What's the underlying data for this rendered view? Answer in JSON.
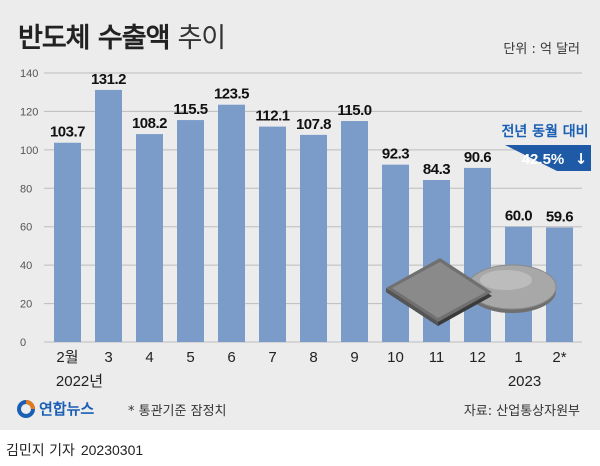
{
  "title": {
    "main": "반도체 수출액",
    "sub": "추이"
  },
  "unit_label": "단위 : 억 달러",
  "chart_data": {
    "type": "bar",
    "categories": [
      "2월",
      "3",
      "4",
      "5",
      "6",
      "7",
      "8",
      "9",
      "10",
      "11",
      "12",
      "1",
      "2*"
    ],
    "values": [
      103.7,
      131.2,
      108.2,
      115.5,
      123.5,
      112.1,
      107.8,
      115.0,
      92.3,
      84.3,
      90.6,
      60.0,
      59.6
    ],
    "value_labels": [
      "103.7",
      "131.2",
      "108.2",
      "115.5",
      "123.5",
      "112.1",
      "107.8",
      "115.0",
      "92.3",
      "84.3",
      "90.6",
      "60.0",
      "59.6"
    ],
    "year_labels": [
      {
        "text": "2022년",
        "category_index": 0
      },
      {
        "text": "2023",
        "category_index": 11
      }
    ],
    "yticks": [
      "0",
      "20",
      "40",
      "60",
      "80",
      "100",
      "120",
      "140"
    ],
    "ylim": [
      0,
      140
    ],
    "grid": true,
    "bar_color": "#7b9bc9",
    "annotation": {
      "label": "전년 동월 대비",
      "value": "42.5%",
      "arrow": "↓",
      "target_index": 12,
      "label_color": "#1a5fb4",
      "box_color": "#1f5aa6"
    }
  },
  "footer": {
    "logo_text": "연합뉴스",
    "footnote": "* 통관기준 잠정치",
    "source": "자료: 산업통상자원부"
  },
  "byline": {
    "author": "김민지 기자",
    "date": "20230301"
  }
}
